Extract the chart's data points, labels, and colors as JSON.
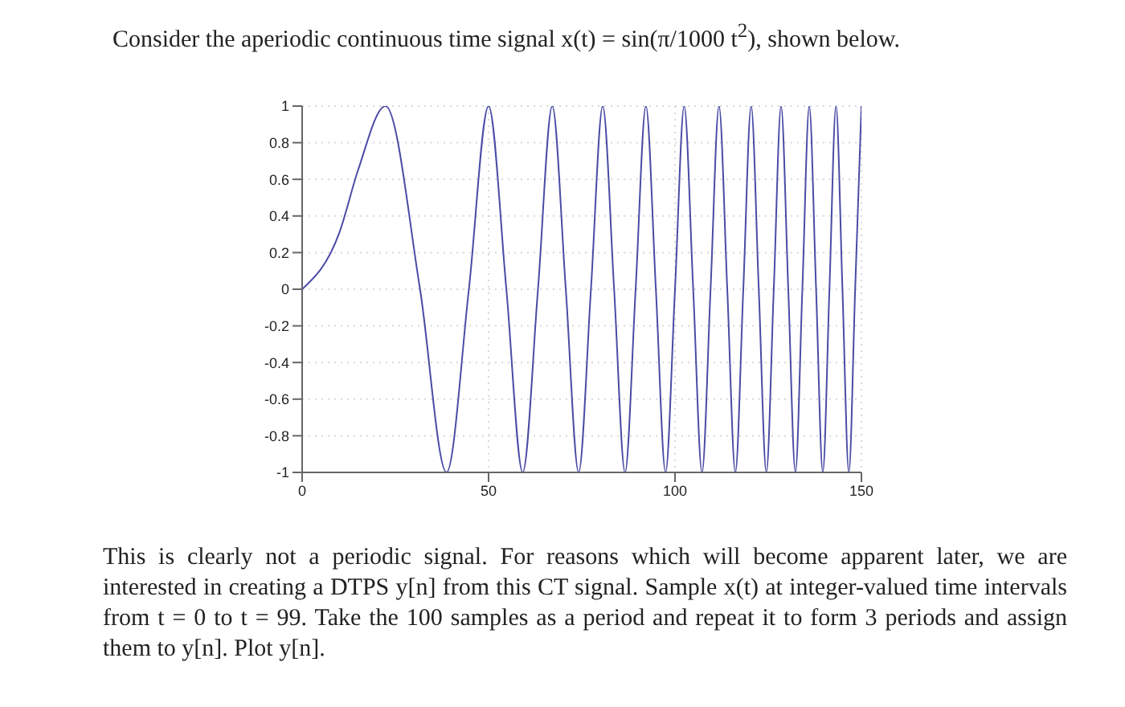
{
  "chart_data": {
    "type": "line",
    "title": "Consider the aperiodic continuous time signal x(t) = sin(π/1000 t$^{2}$), shown below.",
    "annotations": [
      "This is clearly not a periodic signal. For reasons which will become apparent later, we are interested in creating a DTPS y[n] from this CT signal. Sample x(t) at integer-valued time intervals from t = 0 to t = 99. Take the 100 samples as a period and repeat it to form 3 periods and assign them to y[n]. Plot y[n]."
    ],
    "x": [
      0,
      10,
      15,
      22.36,
      31.62,
      38.73,
      44.72,
      50,
      54.77,
      59.16,
      63.25,
      67.08,
      70.71,
      74.16,
      77.46,
      80.62,
      83.67,
      86.6,
      89.44,
      92.2,
      94.87,
      97.47,
      100,
      102.47,
      104.88,
      107.24,
      109.54,
      111.8,
      114.02,
      116.19,
      118.32,
      120.42,
      122.47,
      124.5,
      126.49,
      128.45,
      130.38,
      132.29,
      134.16,
      136.01,
      137.84,
      139.64,
      141.42,
      143.18,
      144.91,
      146.63,
      148.32,
      150
    ],
    "series": [
      {
        "color": "#4b4ba6",
        "values": [
          0,
          0.31,
          0.65,
          1,
          0,
          -1,
          0,
          1,
          0,
          -1,
          0,
          1,
          0,
          -1,
          0,
          1,
          0,
          -1,
          0,
          1,
          0,
          -1,
          0,
          1,
          0,
          -1,
          0,
          1,
          0,
          -1,
          0,
          1,
          0,
          -1,
          0,
          1,
          0,
          -1,
          0,
          1,
          0,
          -1,
          0,
          1,
          0,
          -1,
          0,
          1
        ]
      }
    ],
    "xlim": [
      0,
      150
    ],
    "xticks": [
      0,
      50,
      100,
      150
    ],
    "ylim": [
      -1,
      1
    ],
    "yticks": [
      -1,
      -0.8,
      -0.6,
      -0.4,
      -0.2,
      0,
      0.2,
      0.4,
      0.6,
      0.8,
      1
    ],
    "grid": true,
    "marker": "none",
    "line_style": "solid",
    "legend": false
  }
}
